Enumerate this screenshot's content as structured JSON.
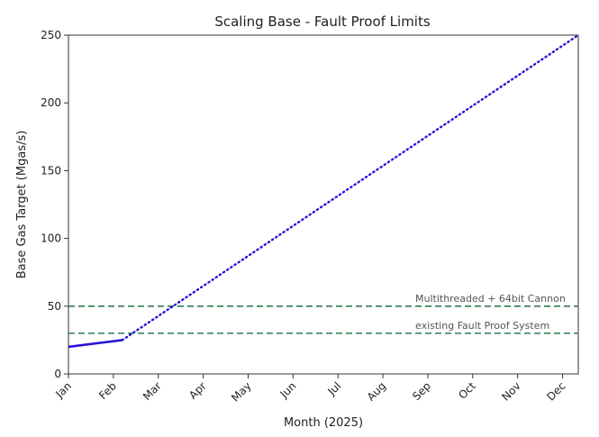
{
  "chart_data": {
    "type": "line",
    "title": "Scaling Base - Fault Proof Limits",
    "xlabel": "Month (2025)",
    "ylabel": "Base Gas Target (Mgas/s)",
    "categories": [
      "Jan",
      "Feb",
      "Mar",
      "Apr",
      "May",
      "Jun",
      "Jul",
      "Aug",
      "Sep",
      "Oct",
      "Nov",
      "Dec"
    ],
    "xlim": [
      0,
      11.35
    ],
    "ylim": [
      0,
      250
    ],
    "yticks": [
      0,
      50,
      100,
      150,
      200,
      250
    ],
    "grid": false,
    "series": [
      {
        "style": "solid",
        "color": "#2a14d6",
        "points": [
          [
            0,
            20
          ],
          [
            1.2,
            25
          ]
        ]
      },
      {
        "style": "dotted",
        "color": "#2a14d6",
        "points": [
          [
            1.2,
            25
          ],
          [
            11.35,
            250
          ]
        ]
      }
    ],
    "hlines": [
      {
        "y": 50,
        "label": "Multithreaded + 64bit Cannon",
        "color": "#2e7d4f",
        "style": "dashed"
      },
      {
        "y": 30,
        "label": "existing Fault Proof System",
        "color": "#2e7d4f",
        "style": "dashed"
      }
    ]
  }
}
